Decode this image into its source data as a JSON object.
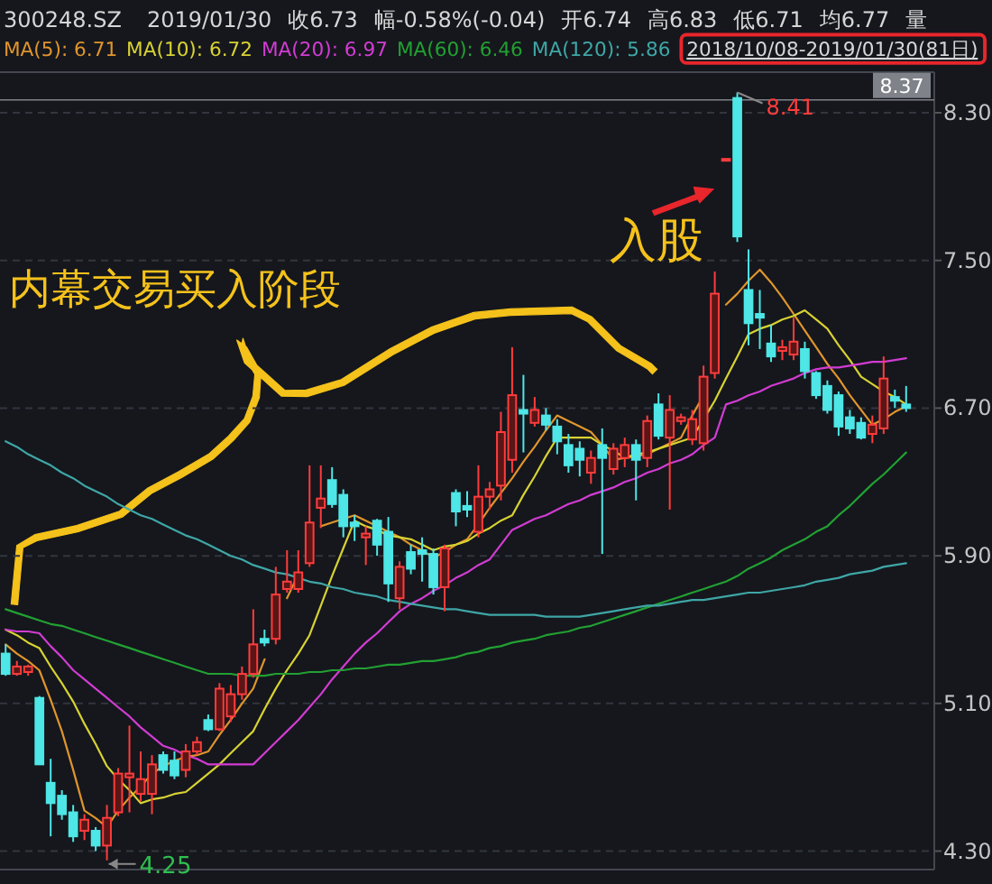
{
  "chart_data": {
    "type": "candlestick",
    "categories": [
      null,
      null,
      null,
      null,
      null,
      null,
      null,
      null,
      null,
      null,
      null,
      null,
      null,
      null,
      null,
      null,
      null,
      null,
      null,
      null,
      null,
      null,
      null,
      null,
      null,
      null,
      null,
      null,
      null,
      null,
      null,
      null,
      null,
      null,
      null,
      null,
      null,
      null,
      null,
      null,
      null,
      null,
      null,
      null,
      null,
      null,
      null,
      null,
      null,
      null,
      null,
      null,
      null,
      null,
      null,
      null,
      null,
      null,
      null,
      null,
      null,
      null,
      null,
      null,
      null,
      null,
      null,
      null,
      null,
      null,
      null,
      null,
      null,
      null,
      null,
      null,
      null,
      null,
      null,
      null,
      null
    ],
    "ohlc": [
      [
        5.37,
        5.42,
        5.25,
        5.26
      ],
      [
        5.26,
        5.33,
        5.25,
        5.3
      ],
      [
        5.27,
        5.31,
        5.25,
        5.3
      ],
      [
        5.13,
        5.14,
        4.77,
        4.77
      ],
      [
        4.67,
        4.8,
        4.38,
        4.56
      ],
      [
        4.6,
        4.63,
        4.47,
        4.5
      ],
      [
        4.51,
        4.55,
        4.35,
        4.38
      ],
      [
        4.41,
        4.5,
        4.36,
        4.47
      ],
      [
        4.41,
        4.43,
        4.3,
        4.33
      ],
      [
        4.33,
        4.55,
        4.25,
        4.48
      ],
      [
        4.51,
        4.75,
        4.49,
        4.72
      ],
      [
        4.7,
        4.98,
        4.51,
        4.72
      ],
      [
        4.61,
        4.84,
        4.57,
        4.69
      ],
      [
        4.61,
        4.82,
        4.5,
        4.77
      ],
      [
        4.82,
        4.84,
        4.72,
        4.74
      ],
      [
        4.79,
        4.84,
        4.69,
        4.71
      ],
      [
        4.74,
        4.88,
        4.7,
        4.84
      ],
      [
        4.84,
        4.92,
        4.82,
        4.89
      ],
      [
        5.01,
        5.04,
        4.95,
        4.96
      ],
      [
        4.96,
        5.21,
        4.95,
        5.18
      ],
      [
        5.03,
        5.2,
        5.0,
        5.15
      ],
      [
        5.15,
        5.3,
        5.12,
        5.26
      ],
      [
        5.26,
        5.61,
        5.24,
        5.42
      ],
      [
        5.45,
        5.5,
        5.41,
        5.43
      ],
      [
        5.45,
        5.84,
        5.42,
        5.69
      ],
      [
        5.72,
        5.93,
        5.7,
        5.76
      ],
      [
        5.72,
        5.93,
        5.7,
        5.81
      ],
      [
        5.86,
        6.39,
        5.84,
        6.08
      ],
      [
        6.16,
        6.39,
        6.05,
        6.21
      ],
      [
        6.31,
        6.38,
        6.16,
        6.18
      ],
      [
        6.23,
        6.26,
        6.0,
        6.06
      ],
      [
        6.08,
        6.12,
        5.98,
        6.06
      ],
      [
        6.0,
        6.06,
        5.85,
        6.02
      ],
      [
        6.09,
        6.1,
        5.9,
        5.96
      ],
      [
        6.03,
        6.11,
        5.65,
        5.75
      ],
      [
        5.67,
        5.87,
        5.61,
        5.84
      ],
      [
        5.92,
        5.96,
        5.8,
        5.83
      ],
      [
        5.93,
        6.0,
        5.76,
        5.91
      ],
      [
        5.91,
        5.94,
        5.69,
        5.73
      ],
      [
        5.73,
        5.96,
        5.6,
        5.94
      ],
      [
        6.24,
        6.26,
        6.06,
        6.14
      ],
      [
        6.17,
        6.25,
        6.11,
        6.15
      ],
      [
        6.03,
        6.39,
        6.0,
        6.22
      ],
      [
        6.22,
        6.3,
        6.15,
        6.26
      ],
      [
        6.28,
        6.68,
        6.2,
        6.57
      ],
      [
        6.42,
        7.03,
        6.35,
        6.77
      ],
      [
        6.69,
        6.88,
        6.46,
        6.67
      ],
      [
        6.62,
        6.76,
        6.6,
        6.69
      ],
      [
        6.66,
        6.7,
        6.58,
        6.61
      ],
      [
        6.6,
        6.64,
        6.45,
        6.52
      ],
      [
        6.5,
        6.56,
        6.35,
        6.39
      ],
      [
        6.48,
        6.52,
        6.33,
        6.42
      ],
      [
        6.35,
        6.47,
        6.29,
        6.43
      ],
      [
        6.5,
        6.59,
        5.91,
        6.43
      ],
      [
        6.37,
        6.51,
        6.34,
        6.48
      ],
      [
        6.43,
        6.54,
        6.38,
        6.5
      ],
      [
        6.5,
        6.53,
        6.2,
        6.42
      ],
      [
        6.43,
        6.66,
        6.38,
        6.63
      ],
      [
        6.72,
        6.78,
        6.53,
        6.55
      ],
      [
        6.54,
        6.77,
        6.15,
        6.69
      ],
      [
        6.63,
        6.67,
        6.61,
        6.65
      ],
      [
        6.53,
        6.69,
        6.5,
        6.64
      ],
      [
        6.51,
        6.93,
        6.47,
        6.87
      ],
      [
        6.89,
        7.44,
        6.86,
        7.32
      ],
      [
        8.05,
        8.05,
        8.05,
        8.05
      ],
      [
        8.38,
        8.41,
        7.6,
        7.63
      ],
      [
        7.34,
        7.56,
        7.04,
        7.16
      ],
      [
        7.21,
        7.34,
        7.02,
        7.19
      ],
      [
        7.05,
        7.15,
        6.95,
        6.98
      ],
      [
        7.01,
        7.07,
        6.96,
        7.03
      ],
      [
        6.99,
        7.19,
        6.96,
        7.06
      ],
      [
        7.02,
        7.06,
        6.86,
        6.9
      ],
      [
        6.89,
        6.9,
        6.75,
        6.77
      ],
      [
        6.82,
        6.85,
        6.67,
        6.69
      ],
      [
        6.77,
        6.79,
        6.55,
        6.6
      ],
      [
        6.65,
        6.69,
        6.56,
        6.59
      ],
      [
        6.62,
        6.65,
        6.53,
        6.54
      ],
      [
        6.56,
        6.66,
        6.51,
        6.61
      ],
      [
        6.59,
        6.98,
        6.56,
        6.86
      ],
      [
        6.76,
        6.8,
        6.7,
        6.74
      ],
      [
        6.72,
        6.82,
        6.68,
        6.7
      ]
    ],
    "series": [
      {
        "type": "line",
        "name": "MA(5): 6.71",
        "color": "#e0952c",
        "values": [
          5.42,
          5.37,
          5.33,
          5.28,
          5.12,
          4.95,
          4.74,
          4.52,
          4.48,
          4.43,
          4.52,
          4.59,
          4.65,
          4.72,
          4.76,
          4.79,
          4.81,
          4.82,
          4.84,
          4.93,
          5.01,
          5.1,
          5.18,
          5.34,
          null,
          5.67,
          5.8,
          null,
          6.06,
          6.08,
          6.1,
          6.12,
          6.09,
          6.06,
          6.03,
          6.0,
          5.96,
          5.93,
          5.89,
          5.92,
          5.96,
          5.99,
          6.07,
          6.16,
          6.24,
          6.32,
          6.41,
          6.49,
          6.58,
          6.66,
          6.63,
          6.6,
          6.57,
          6.5,
          6.42,
          6.43,
          6.44,
          6.45,
          6.48,
          6.51,
          6.54,
          6.66,
          6.77,
          null,
          7.26,
          7.32,
          7.39,
          7.45,
          7.38,
          7.3,
          7.21,
          7.12,
          7.03,
          6.94,
          6.86,
          6.77,
          6.69,
          6.61,
          6.64,
          6.68,
          6.71
        ]
      },
      {
        "type": "line",
        "name": "MA(10): 6.72",
        "color": "#d8d232",
        "values": [
          5.5,
          5.47,
          5.43,
          5.4,
          5.3,
          5.21,
          5.11,
          4.99,
          4.88,
          4.76,
          4.69,
          4.63,
          4.56,
          4.58,
          4.59,
          4.61,
          4.62,
          4.67,
          4.72,
          4.77,
          4.83,
          4.89,
          4.95,
          5.07,
          5.18,
          5.28,
          5.37,
          5.47,
          5.63,
          5.79,
          5.94,
          6.09,
          6.06,
          6.04,
          6.01,
          6.0,
          5.99,
          5.96,
          5.93,
          5.95,
          5.96,
          5.98,
          6.02,
          6.05,
          6.09,
          6.12,
          6.23,
          6.33,
          6.44,
          6.54,
          6.54,
          6.54,
          6.54,
          6.5,
          6.47,
          6.43,
          6.45,
          6.46,
          6.48,
          6.5,
          6.52,
          6.54,
          6.64,
          6.74,
          6.86,
          6.98,
          7.1,
          7.13,
          7.15,
          7.18,
          7.2,
          7.23,
          7.18,
          7.13,
          7.04,
          6.96,
          6.87,
          6.83,
          6.79,
          6.76,
          6.72
        ]
      },
      {
        "type": "line",
        "name": "MA(20): 6.97",
        "color": "#d23cd2",
        "values": [
          5.5,
          5.49,
          5.49,
          5.48,
          5.41,
          5.35,
          5.28,
          5.23,
          5.18,
          5.13,
          5.08,
          5.03,
          4.97,
          4.92,
          4.87,
          4.85,
          4.82,
          4.8,
          4.77,
          4.77,
          4.77,
          4.77,
          4.77,
          4.83,
          4.89,
          4.95,
          5.01,
          5.08,
          5.15,
          5.23,
          5.3,
          5.37,
          5.43,
          5.48,
          5.54,
          5.6,
          5.64,
          5.67,
          5.71,
          5.74,
          5.78,
          5.81,
          5.85,
          5.88,
          5.96,
          6.04,
          6.07,
          6.1,
          6.12,
          6.15,
          6.18,
          6.2,
          6.23,
          6.25,
          6.27,
          6.3,
          6.32,
          6.35,
          6.37,
          6.4,
          6.42,
          6.45,
          6.5,
          6.54,
          6.72,
          6.74,
          6.77,
          6.79,
          6.82,
          6.84,
          6.86,
          6.89,
          6.91,
          6.92,
          6.92,
          6.93,
          6.94,
          6.95,
          6.95,
          6.96,
          6.97
        ]
      },
      {
        "type": "line",
        "name": "MA(60): 6.46",
        "color": "#22a032",
        "values": [
          5.61,
          5.59,
          5.57,
          5.55,
          5.53,
          5.52,
          5.5,
          5.48,
          5.46,
          5.44,
          5.42,
          5.4,
          5.38,
          5.36,
          5.34,
          5.32,
          5.3,
          5.28,
          5.26,
          5.26,
          5.26,
          5.25,
          5.25,
          5.25,
          5.26,
          5.26,
          5.26,
          5.27,
          5.27,
          5.28,
          5.28,
          5.29,
          5.29,
          5.3,
          5.31,
          5.31,
          5.32,
          5.33,
          5.33,
          5.34,
          5.35,
          5.37,
          5.38,
          5.4,
          5.41,
          5.43,
          5.44,
          5.45,
          5.47,
          5.48,
          5.49,
          5.51,
          5.52,
          5.54,
          5.56,
          5.58,
          5.6,
          5.62,
          5.64,
          5.66,
          5.68,
          5.7,
          5.72,
          5.74,
          5.76,
          5.79,
          5.83,
          5.86,
          5.89,
          5.93,
          5.96,
          5.99,
          6.03,
          6.06,
          6.12,
          6.17,
          6.23,
          6.29,
          6.34,
          6.4,
          6.46
        ]
      },
      {
        "type": "line",
        "name": "MA(120): 5.86",
        "color": "#3fa6a6",
        "values": [
          6.52,
          6.49,
          6.45,
          6.42,
          6.39,
          6.35,
          6.32,
          6.28,
          6.25,
          6.22,
          6.18,
          6.15,
          6.12,
          6.1,
          6.07,
          6.04,
          6.01,
          5.99,
          5.96,
          5.93,
          5.9,
          5.88,
          5.85,
          5.83,
          5.81,
          5.8,
          5.78,
          5.76,
          5.75,
          5.73,
          5.72,
          5.7,
          5.69,
          5.68,
          5.66,
          5.65,
          5.64,
          5.63,
          5.62,
          5.61,
          5.61,
          5.6,
          5.59,
          5.58,
          5.58,
          5.58,
          5.58,
          5.58,
          5.57,
          5.57,
          5.57,
          5.57,
          5.58,
          5.59,
          5.6,
          5.61,
          5.62,
          5.63,
          5.63,
          5.64,
          5.65,
          5.66,
          5.66,
          5.67,
          5.68,
          5.69,
          5.7,
          5.7,
          5.71,
          5.72,
          5.73,
          5.74,
          5.76,
          5.77,
          5.78,
          5.8,
          5.81,
          5.82,
          5.84,
          5.85,
          5.86
        ]
      }
    ],
    "ylim": [
      4.2,
      8.52
    ],
    "yticks": [
      {
        "value": 4.3,
        "label": "4.30"
      },
      {
        "value": 5.1,
        "label": "5.10"
      },
      {
        "value": 5.9,
        "label": "5.90"
      },
      {
        "value": 6.7,
        "label": "6.70"
      },
      {
        "value": 7.5,
        "label": "7.50"
      },
      {
        "value": 8.3,
        "label": "8.30"
      }
    ],
    "tick_labels": "y",
    "grid": "y",
    "ref_lines": [
      {
        "axis": "y",
        "value": 8.37,
        "label": "8.37",
        "color": "#80828a"
      }
    ],
    "annotations": [
      {
        "text": "8.41",
        "y": 8.41
      },
      "300248.SZ",
      "2019/01/30",
      "收6.73",
      "幅-0.58%(-0.04)",
      "开6.74",
      "高6.83",
      "低6.71",
      "均6.77",
      "量",
      "2018/10/08-2019/01/30(81日)",
      "内幕交易买入阶段",
      "入股",
      "4.25"
    ]
  }
}
